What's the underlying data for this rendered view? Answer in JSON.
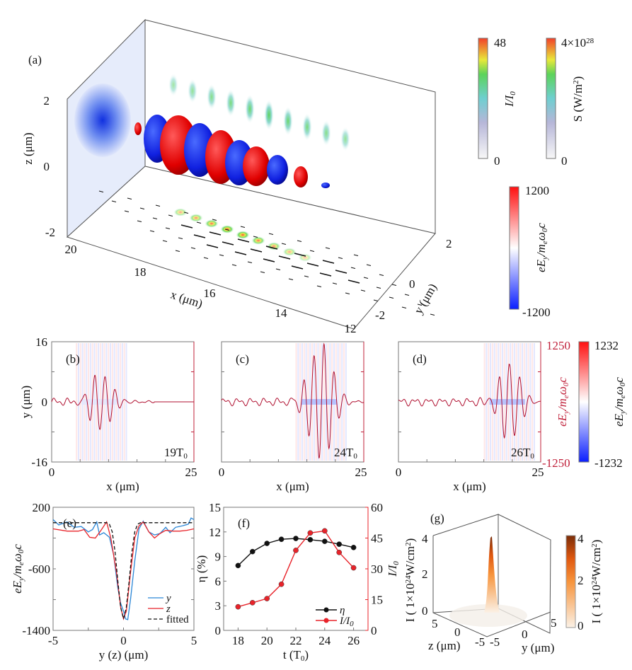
{
  "panel_labels": {
    "a": "(a)",
    "b": "(b)",
    "c": "(c)",
    "d": "(d)",
    "e": "(e)",
    "f": "(f)",
    "g": "(g)"
  },
  "panel_a": {
    "z_ticks": [
      "2",
      "0",
      "-2"
    ],
    "x_ticks": [
      "20",
      "18",
      "16",
      "14",
      "12"
    ],
    "y_ticks": [
      "2",
      "0",
      "-2"
    ],
    "x_label": "x (_{}μm)",
    "y_label": "y (μm)",
    "z_label": "z (μm)",
    "colorbars": [
      {
        "label": "I/I_{0}",
        "max": "48",
        "min": "0",
        "colormap": "jet-light"
      },
      {
        "label": "S (W/m^{2})",
        "max": "4×10^{28}",
        "min": "0",
        "colormap": "jet-light"
      },
      {
        "label": "eE_{y}/m_{e}ω_{0}c",
        "max": "1200",
        "min": "-1200",
        "colormap": "blue-white-red"
      }
    ]
  },
  "panels_bcd": {
    "y_label": "y (μm)",
    "x_label": "x (μm)",
    "y_ticks": [
      "16",
      "0",
      "-16"
    ],
    "x_ticks": [
      "0",
      "25"
    ],
    "times": [
      "19T_{0}",
      "24T_{0}",
      "26T_{0}"
    ],
    "right_axis": {
      "label": "eE_{y}/m_{e}ω_{0}c",
      "max": "1250",
      "min": "-1250",
      "color": "#c0203a"
    },
    "colorbar": {
      "label": "eE_{y}/m_{e}ω_{0}c",
      "max": "1232",
      "min": "-1232",
      "colormap": "blue-white-red"
    }
  },
  "chart_data": [
    {
      "panel": "e",
      "type": "line",
      "xlabel": "y (z) (μm)",
      "ylabel": "eE_{y}/m_{e}ω_{0}c",
      "xlim": [
        -5,
        5
      ],
      "ylim": [
        -1400,
        200
      ],
      "x_ticks": [
        "-5",
        "0",
        "5"
      ],
      "y_ticks": [
        "200",
        "-600",
        "-1400"
      ],
      "legend_position": "bottom-right",
      "series": [
        {
          "name": "y",
          "color": "#2a86d6",
          "style": "solid",
          "x": [
            -5,
            -4.6,
            -4,
            -3.5,
            -3,
            -2.5,
            -2.2,
            -1.9,
            -1.7,
            -1.4,
            -1,
            -0.7,
            -0.4,
            -0.2,
            0,
            0.15,
            0.3,
            0.5,
            0.8,
            1.1,
            1.4,
            1.8,
            2.2,
            2.6,
            3,
            3.3,
            3.7,
            4.2,
            4.6,
            4.8,
            5
          ],
          "y": [
            40,
            -30,
            10,
            -60,
            -50,
            -120,
            -90,
            10,
            -160,
            -130,
            -190,
            -420,
            -850,
            -1050,
            -1150,
            -1250,
            -1260,
            -1000,
            -500,
            -80,
            20,
            -120,
            -160,
            -140,
            -60,
            -130,
            -60,
            -40,
            -20,
            60,
            40
          ]
        },
        {
          "name": "z",
          "color": "#e8232a",
          "style": "solid",
          "x": [
            -5,
            -4,
            -3.2,
            -2.8,
            -2.4,
            -2,
            -1.6,
            -1.2,
            -0.9,
            -0.5,
            -0.2,
            0,
            0.2,
            0.5,
            0.8,
            1.1,
            1.4,
            1.8,
            2.2,
            2.6,
            3,
            3.5,
            4,
            4.5,
            5
          ],
          "y": [
            -80,
            -110,
            -110,
            -90,
            -190,
            -200,
            -100,
            10,
            -200,
            -650,
            -1100,
            -1250,
            -1150,
            -650,
            -200,
            -40,
            10,
            -120,
            -200,
            -140,
            -100,
            -110,
            -110,
            -100,
            -80
          ]
        },
        {
          "name": "fitted",
          "color": "#111111",
          "style": "dashed",
          "x": [
            -5,
            -1.2,
            -1,
            -0.8,
            -0.6,
            -0.4,
            -0.2,
            0,
            0.2,
            0.4,
            0.6,
            0.8,
            1,
            1.2,
            5
          ],
          "y": [
            0,
            0,
            -20,
            -120,
            -380,
            -760,
            -1100,
            -1250,
            -1100,
            -760,
            -380,
            -120,
            -20,
            0,
            0
          ]
        }
      ]
    },
    {
      "panel": "f",
      "type": "line",
      "xlabel": "t (T_{0})",
      "ylabel": "η (%)",
      "ylabel_right": "I/I_{0}",
      "x": [
        18,
        19,
        20,
        21,
        22,
        23,
        24,
        25,
        26
      ],
      "xlim": [
        17,
        27
      ],
      "ylim": [
        0,
        15
      ],
      "ylim_right": [
        0,
        60
      ],
      "x_ticks": [
        "18",
        "20",
        "22",
        "24",
        "26"
      ],
      "y_ticks": [
        "0",
        "3",
        "6",
        "9",
        "12",
        "15"
      ],
      "y_ticks_right": [
        "0",
        "15",
        "30",
        "45",
        "60"
      ],
      "legend_position": "bottom-right",
      "series": [
        {
          "name": "η",
          "color": "#111111",
          "axis": "left",
          "values": [
            7.9,
            9.6,
            10.6,
            11.1,
            11.2,
            11.05,
            10.85,
            10.5,
            10.1
          ]
        },
        {
          "name": "I/I_{0}",
          "color": "#e8232a",
          "axis": "right",
          "values": [
            11.5,
            13.5,
            15.5,
            22.5,
            39,
            47.5,
            48.5,
            38,
            30.5
          ]
        }
      ]
    },
    {
      "panel": "g",
      "type": "surface",
      "zlabel": "I ( 1×10^{24}W/cm^{2})",
      "xlabel": "z (μm)",
      "ylabel": "y (μm)",
      "z_ticks": [
        "0",
        "2",
        "4"
      ],
      "x_ticks": [
        "5",
        "0",
        "-5"
      ],
      "y_ticks": [
        "-5",
        "0",
        "5"
      ],
      "peak": 4,
      "colorbar": {
        "max": "4",
        "mid": "2",
        "min": "0",
        "label": "I ( 1×10^{24}W/cm^{2})",
        "colormap": "white-orange-brown"
      }
    }
  ]
}
